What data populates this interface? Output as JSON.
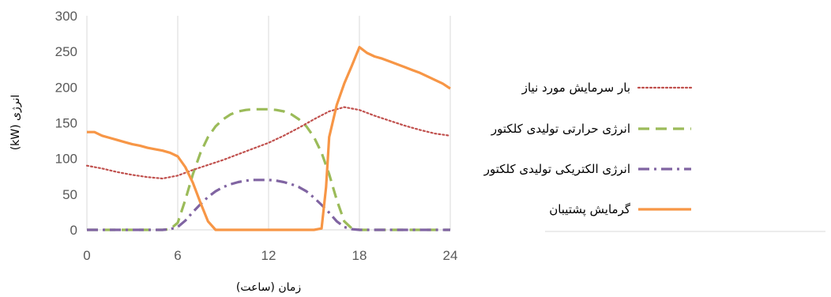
{
  "chart_data": {
    "type": "line",
    "xlabel": "زمان (ساعت)",
    "ylabel": "انرژی (kW)",
    "xlim": [
      0,
      24
    ],
    "ylim": [
      0,
      300
    ],
    "x_ticks": [
      0,
      6,
      12,
      18,
      24
    ],
    "y_ticks": [
      0,
      50,
      100,
      150,
      200,
      250,
      300
    ],
    "grid": "vertical",
    "legend_position": "right",
    "series": [
      {
        "name": "بار سرمایش مورد نیاز",
        "color": "#c0504d",
        "style": "dotted",
        "x": [
          0,
          1,
          2,
          3,
          4,
          5,
          6,
          7,
          8,
          9,
          10,
          11,
          12,
          13,
          14,
          15,
          16,
          17,
          18,
          19,
          20,
          21,
          22,
          23,
          24
        ],
        "y": [
          90,
          86,
          81,
          77,
          74,
          72,
          76,
          84,
          91,
          98,
          106,
          114,
          122,
          132,
          143,
          155,
          166,
          172,
          168,
          160,
          153,
          146,
          140,
          135,
          132
        ]
      },
      {
        "name": "انرژی حرارتی تولیدی کلکتور",
        "color": "#9bbb59",
        "style": "dashed",
        "x": [
          0,
          1,
          2,
          3,
          4,
          5,
          5.5,
          6,
          6.5,
          7,
          7.5,
          8,
          8.5,
          9,
          9.5,
          10,
          10.5,
          11,
          11.5,
          12,
          12.5,
          13,
          13.5,
          14,
          14.5,
          15,
          15.5,
          16,
          16.5,
          17,
          17.5,
          18,
          19,
          20,
          21,
          22,
          23,
          24
        ],
        "y": [
          0,
          0,
          0,
          0,
          0,
          0,
          1,
          10,
          42,
          78,
          108,
          130,
          145,
          155,
          162,
          166,
          168,
          169,
          169,
          169,
          168,
          166,
          162,
          155,
          145,
          130,
          108,
          78,
          42,
          12,
          2,
          0,
          0,
          0,
          0,
          0,
          0,
          0
        ]
      },
      {
        "name": "انرژی الکتریکی تولیدی کلکتور",
        "color": "#8064a2",
        "style": "dash-dot",
        "x": [
          0,
          1,
          2,
          3,
          4,
          5,
          5.5,
          6,
          6.5,
          7,
          7.5,
          8,
          8.5,
          9,
          9.5,
          10,
          10.5,
          11,
          11.5,
          12,
          12.5,
          13,
          13.5,
          14,
          14.5,
          15,
          15.5,
          16,
          16.5,
          17,
          17.5,
          18,
          19,
          20,
          21,
          22,
          23,
          24
        ],
        "y": [
          0,
          0,
          0,
          0,
          0,
          0,
          1,
          4,
          13,
          25,
          36,
          46,
          54,
          60,
          64,
          67,
          69,
          70,
          70,
          70,
          69,
          67,
          64,
          60,
          54,
          45,
          35,
          24,
          12,
          4,
          1,
          0,
          0,
          0,
          0,
          0,
          0,
          0
        ]
      },
      {
        "name": "گرمایش پشتیبان",
        "color": "#f79646",
        "style": "solid",
        "x": [
          0,
          0.5,
          1,
          1.5,
          2,
          2.5,
          3,
          3.5,
          4,
          4.5,
          5,
          5.5,
          6,
          6.5,
          7,
          7.5,
          8,
          8.5,
          9,
          10,
          11,
          12,
          13,
          14,
          15,
          15.5,
          15.8,
          16,
          16.5,
          17,
          17.5,
          18,
          18.5,
          19,
          19.5,
          20,
          20.5,
          21,
          21.5,
          22,
          22.5,
          23,
          23.5,
          24
        ],
        "y": [
          137,
          137,
          132,
          129,
          126,
          123,
          120,
          118,
          115,
          113,
          111,
          108,
          103,
          88,
          66,
          38,
          12,
          0,
          0,
          0,
          0,
          0,
          0,
          0,
          0,
          2,
          60,
          130,
          175,
          205,
          230,
          256,
          248,
          243,
          240,
          236,
          232,
          228,
          224,
          220,
          215,
          210,
          205,
          198
        ]
      }
    ]
  }
}
